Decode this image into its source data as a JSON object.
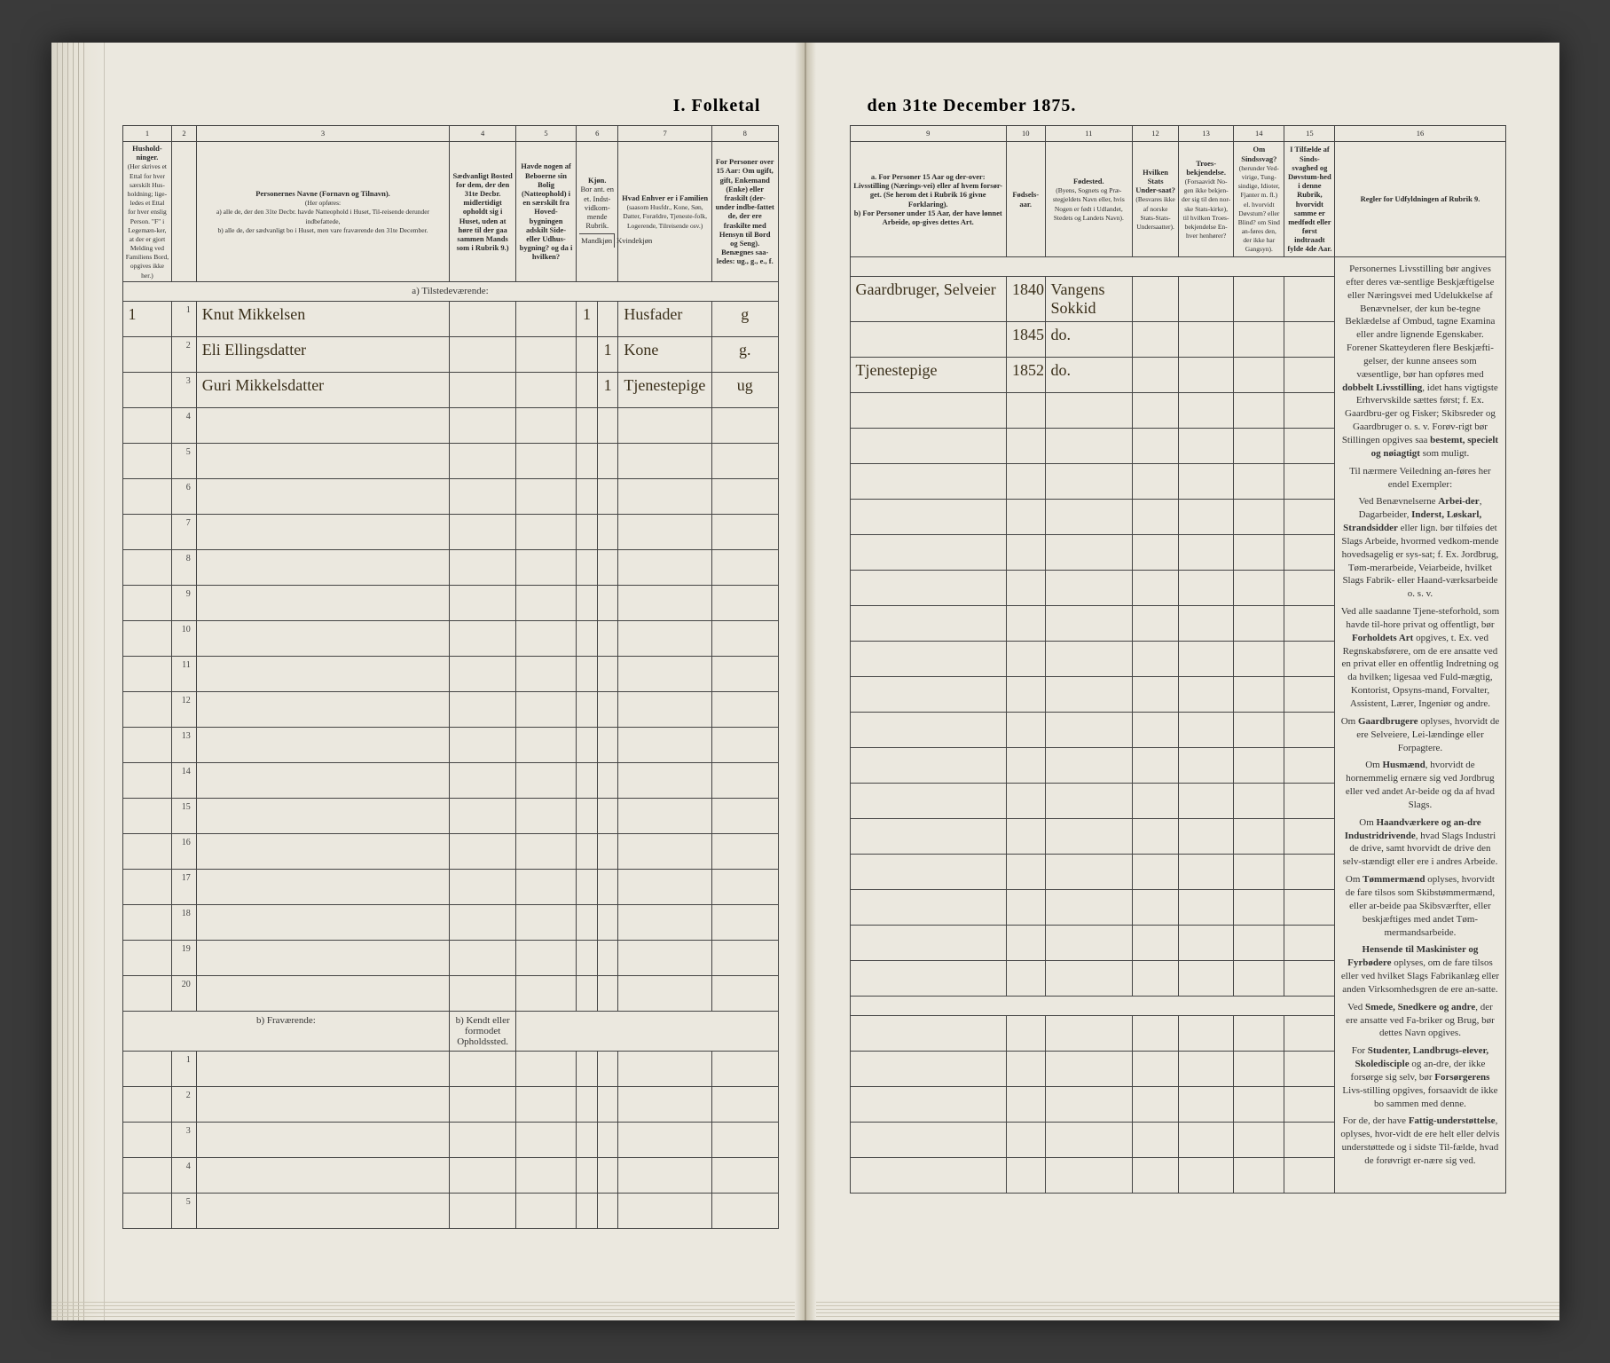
{
  "title_left": "I. Folketal",
  "title_right": "den 31te December 1875.",
  "columns_left": [
    {
      "num": "1",
      "label": "Hushold-\nninger.",
      "sub": "(Her skrives et Ettal for hver særskilt Hus-holdning; lige-ledes et Ettal for hver enslig Person. \"F\" i Legemæn-ker, at der er gjort Melding ved Familiens Bord, opgives ikke her.)",
      "w": "45"
    },
    {
      "num": "2",
      "label": "",
      "w": "22"
    },
    {
      "num": "3",
      "label": "Personernes Navne (Fornavn og Tilnavn).",
      "sub": "(Her opføres:\na) alle de, der den 31te Decbr. havde Natteophold i Huset, Til-reisende derunder indbefattede,\nb) alle de, der sædvanligt bo i Huset, men vare fraværende den 31te December.",
      "w": "230"
    },
    {
      "num": "4",
      "label": "Sædvanligt Bosted for dem, der den 31te Decbr. midlertidigt opholdt sig i Huset, uden at høre til der gaa sammen Mands som i Rubrik 9.)",
      "w": "60"
    },
    {
      "num": "5",
      "label": "Havde nogen af Beboerne sin Bolig (Natteophold) i en særskilt fra Hoved-bygningen adskilt Side- eller Udhus-bygning? og da i hvilken?",
      "w": "55"
    },
    {
      "num": "6",
      "label": "Kjøn.",
      "sub": "Bor ant. en et. Indst-vidkom-mende Rubrik.",
      "w": "38"
    },
    {
      "num": "7",
      "label": "Hvad Enhver er i Familien",
      "sub": "(saasom Husfdr., Kone, Søn, Datter, Forældre, Tjeneste-folk, Logerende, Tilreisende osv.)",
      "w": "85"
    },
    {
      "num": "8",
      "label": "For Personer over 15 Aar: Om ugift, gift, Enkemand (Enke) eller fraskilt (der-under indbe-fattet de, der ere fraskilte med Hensyn til Bord og Seng). Benægnes saa-ledes: ug., g., e., f.",
      "w": "60"
    }
  ],
  "columns_right": [
    {
      "num": "9",
      "label": "a. For Personer 15 Aar og der-over: Livsstilling (Nærings-vei) eller af hvem forsør-get. (Se herom det i Rubrik 16 givne Forklaring).\nb) For Personer under 15 Aar, der have lønnet Arbeide, op-gives dettes Art.",
      "w": "170"
    },
    {
      "num": "10",
      "label": "Fødsels-aar.",
      "w": "42"
    },
    {
      "num": "11",
      "label": "Fødested.",
      "sub": "(Byens, Sognets og Præ-stegjeldets Navn eller, hvis Nogen er født i Udlandet, Stedets og Landets Navn).",
      "w": "95"
    },
    {
      "num": "12",
      "label": "Hvilken Stats Under-saat?",
      "sub": "(Besvares ikke af norske Stats-Stats-Undersaatter).",
      "w": "50"
    },
    {
      "num": "13",
      "label": "Troes-bekjendelse.",
      "sub": "(Forsaavidt No-gen ikke bekjen-der sig til den nor-ske Stats-kirke), til hvilken Troes-bekjendelse En-hver henhører?",
      "w": "60"
    },
    {
      "num": "14",
      "label": "Om Sindssvag?",
      "sub": "(herunder Ved-virige, Tung-sindige, Idioter, Fjanter m. fl.) el. hvorvidt Døvstum? eller Blind? om Sind an-føres den, der ikke har Gangsyn).",
      "w": "55"
    },
    {
      "num": "15",
      "label": "I Tilfælde af Sinds-svaghed og Døvstum-hed i denne Rubrik, hvorvidt samme er medfødt eller først indtraadt fylde 4de Aar.",
      "w": "55"
    },
    {
      "num": "16",
      "label": "Regler for Udfyldningen af Rubrik 9.",
      "w": "185"
    }
  ],
  "section_a": "a) Tilstedeværende:",
  "section_b": "b) Fraværende:",
  "section_b_col4": "b) Kendt eller formodet Opholdssted.",
  "entries": [
    {
      "hh": "1",
      "row": "1",
      "name": "Knut Mikkelsen",
      "sex_m": "1",
      "sex_f": "",
      "role": "Husfader",
      "civil": "g",
      "occ": "Gaardbruger, Selveier",
      "year": "1840",
      "birthplace": "Vangens Sokkid"
    },
    {
      "hh": "",
      "row": "2",
      "name": "Eli Ellingsdatter",
      "sex_m": "",
      "sex_f": "1",
      "role": "Kone",
      "civil": "g.",
      "occ": "",
      "year": "1845",
      "birthplace": "do."
    },
    {
      "hh": "",
      "row": "3",
      "name": "Guri Mikkelsdatter",
      "sex_m": "",
      "sex_f": "1",
      "role": "Tjenestepige",
      "civil": "ug",
      "occ": "Tjenestepige",
      "year": "1852",
      "birthplace": "do."
    }
  ],
  "blank_rows_a": 17,
  "blank_rows_b": 5,
  "rules_text": [
    "Personernes Livsstilling bør angives efter deres væ-sentlige Beskjæftigelse eller Næringsvei med Udelukkelse af Benævnelser, der kun be-tegne Beklædelse af Ombud, tagne Examina eller andre lignende Egenskaber. Forener Skatteyderen flere Beskjæfti-gelser, der kunne ansees som væsentlige, bør han opføres med <b>dobbelt Livsstilling</b>, idet hans vigtigste Erhvervskilde sættes først; f. Ex. Gaardbru-ger og Fisker; Skibsreder og Gaardbruger o. s. v. Forøv-rigt bør Stillingen opgives saa <b>bestemt, specielt og nøiagtigt</b> som muligt.",
    "Til nærmere Veiledning an-føres her endel Exempler:",
    "Ved Benævnelserne <b>Arbei-der</b>, Dagarbeider, <b>Inderst, Løskarl, Strandsidder</b> eller lign. bør tilføies det Slags Arbeide, hvormed vedkom-mende hovedsagelig er sys-sat; f. Ex. Jordbrug, Tøm-merarbeide, Veiarbeide, hvilket Slags Fabrik- eller Haand-værksarbeide o. s. v.",
    "Ved alle saadanne Tjene-steforhold, som havde til-hore privat og offentligt, bør <b>Forholdets Art</b> opgives, t. Ex. ved Regnskabsførere, om de ere ansatte ved en privat eller en offentlig Indretning og da hvilken; ligesaa ved Fuld-mægtig, Kontorist, Opsyns-mand, Forvalter, Assistent, Lærer, Ingeniør og andre.",
    "Om <b>Gaardbrugere</b> oplyses, hvorvidt de ere Selveiere, Lei-lændinge eller Forpagtere.",
    "Om <b>Husmænd</b>, hvorvidt de hornemmelig ernære sig ved Jordbrug eller ved andet Ar-beide og da af hvad Slags.",
    "Om <b>Haandværkere og an-dre Industridrivende</b>, hvad Slags Industri de drive, samt hvorvidt de drive den selv-stændigt eller ere i andres Arbeide.",
    "Om <b>Tømmermænd</b> oplyses, hvorvidt de fare tilsos som Skibstømmermænd, eller ar-beide paa Skibsværfter, eller beskjæftiges med andet Tøm-mermandsarbeide.",
    "<b>Hensende til Maskinister og Fyrbødere</b> oplyses, om de fare tilsos eller ved hvilket Slags Fabrikanlæg eller anden Virksomhedsgren de ere an-satte.",
    "Ved <b>Smede, Snedkere og andre</b>, der ere ansatte ved Fa-briker og Brug, bør dettes Navn opgives.",
    "For <b>Studenter, Landbrugs-elever, Skoledisciple</b> og an-dre, der ikke forsørge sig selv, bør <b>Forsørgerens</b> Livs-stilling opgives, forsaavidt de ikke bo sammen med denne.",
    "For de, der have <b>Fattig-understøttelse</b>, oplyses, hvor-vidt de ere helt eller delvis understøttede og i sidste Til-fælde, hvad de forøvrigt er-nære sig ved."
  ]
}
